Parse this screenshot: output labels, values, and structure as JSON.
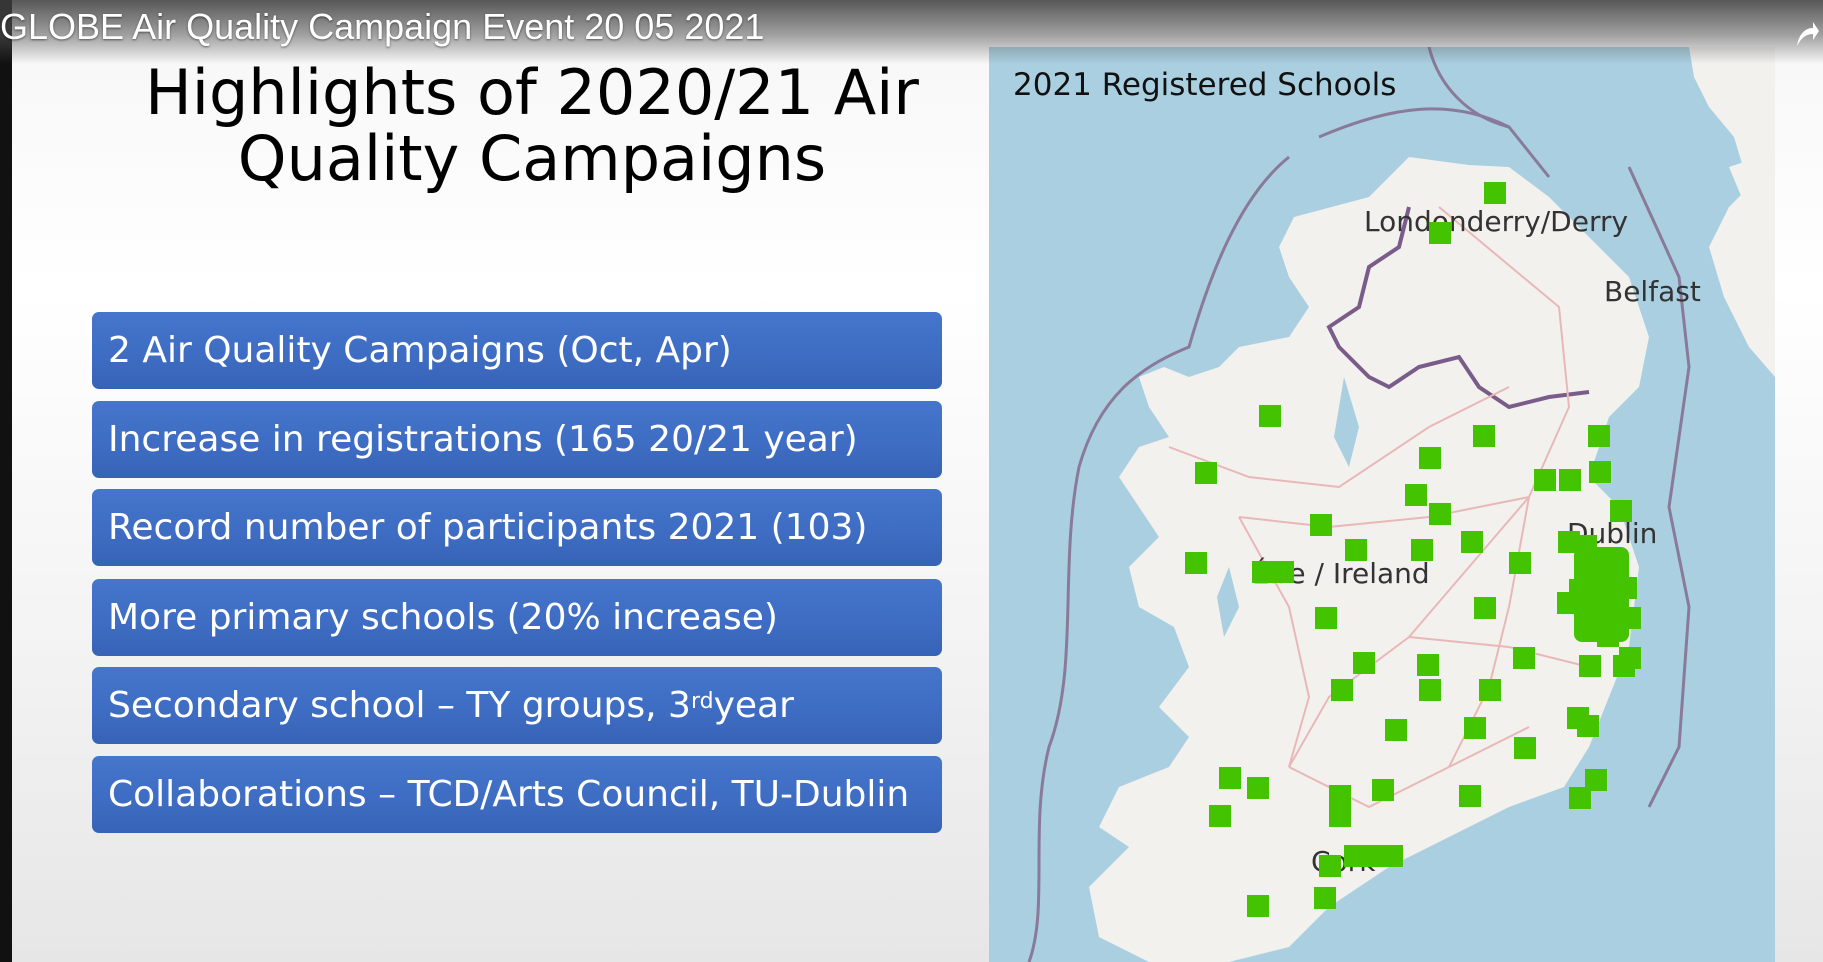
{
  "video": {
    "title": "GLOBE Air Quality Campaign Event 20 05 2021",
    "share_icon": "share-arrow-icon"
  },
  "slide": {
    "title": "Highlights of 2020/21 Air Quality Campaigns",
    "bullets": [
      "2 Air Quality Campaigns (Oct, Apr)",
      "Increase in registrations (165 20/21 year)",
      "Record number of participants 2021 (103)",
      "More primary schools (20% increase)",
      "Secondary school – TY groups, 3",
      "Collaborations – TCD/Arts Council, TU-Dublin"
    ],
    "bullet5_sup": "rd",
    "bullet5_tail": " year"
  },
  "map": {
    "caption": "2021 Registered Schools",
    "labels": {
      "derry": "Londonderry/Derry",
      "belfast": "Belfast",
      "dublin": "Dublin",
      "ireland": "Éire / Ireland",
      "cork": "Cork"
    },
    "colors": {
      "sea": "#a9cfe0",
      "land": "#f3f1ee",
      "marker": "#44c400",
      "border": "#7a5c8a",
      "roads": "#e8b8b8"
    }
  }
}
